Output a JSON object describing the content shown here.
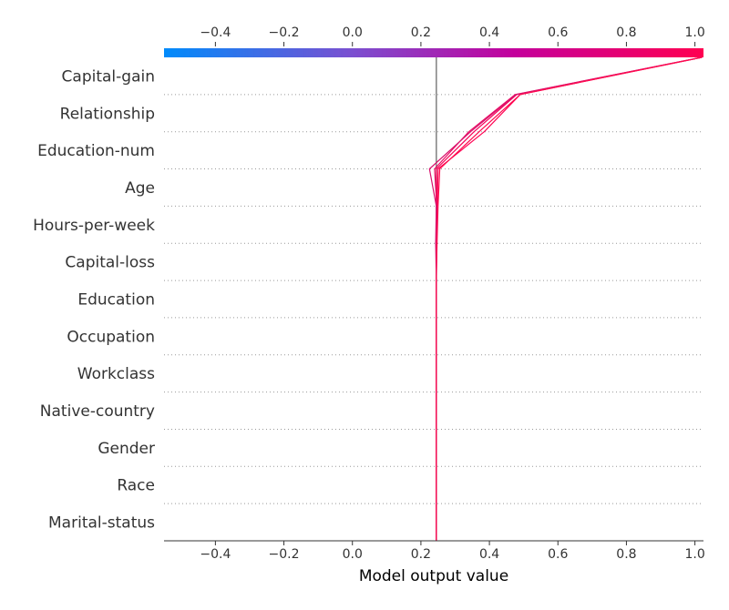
{
  "chart_data": {
    "type": "line",
    "subtype": "shap-decision-plot",
    "title": "",
    "xlabel": "Model output value",
    "ylabel": "",
    "xlim": [
      -0.55,
      1.025
    ],
    "base_value": 0.245,
    "x_ticks": [
      -0.4,
      -0.2,
      0.0,
      0.2,
      0.4,
      0.6,
      0.8,
      1.0
    ],
    "x_tick_labels": [
      "−0.4",
      "−0.2",
      "0.0",
      "0.2",
      "0.4",
      "0.6",
      "0.8",
      "1.0"
    ],
    "features": [
      "Capital-gain",
      "Relationship",
      "Education-num",
      "Age",
      "Hours-per-week",
      "Capital-loss",
      "Education",
      "Occupation",
      "Workclass",
      "Native-country",
      "Gender",
      "Race",
      "Marital-status"
    ],
    "colormap": [
      "#008bfb",
      "#7b4fd0",
      "#c4009c",
      "#ff0051"
    ],
    "grid": "dotted horizontal",
    "series": [
      {
        "values": [
          1.02,
          0.49,
          0.385,
          0.25,
          0.248,
          0.246,
          0.245,
          0.245,
          0.245,
          0.245,
          0.245,
          0.245,
          0.245,
          0.245
        ],
        "color": "#ff0052"
      },
      {
        "values": [
          1.02,
          0.48,
          0.355,
          0.245,
          0.248,
          0.246,
          0.245,
          0.245,
          0.245,
          0.245,
          0.245,
          0.245,
          0.245,
          0.245
        ],
        "color": "#f50257"
      },
      {
        "values": [
          1.02,
          0.475,
          0.34,
          0.24,
          0.246,
          0.245,
          0.245,
          0.245,
          0.245,
          0.245,
          0.245,
          0.245,
          0.245,
          0.245
        ],
        "color": "#ea0a62"
      },
      {
        "values": [
          1.02,
          0.478,
          0.345,
          0.225,
          0.245,
          0.243,
          0.245,
          0.245,
          0.245,
          0.245,
          0.245,
          0.245,
          0.245,
          0.245
        ],
        "color": "#d8136e"
      },
      {
        "values": [
          1.02,
          0.49,
          0.37,
          0.255,
          0.25,
          0.247,
          0.245,
          0.245,
          0.245,
          0.245,
          0.245,
          0.245,
          0.245,
          0.245
        ],
        "color": "#ff0a4e"
      }
    ]
  }
}
